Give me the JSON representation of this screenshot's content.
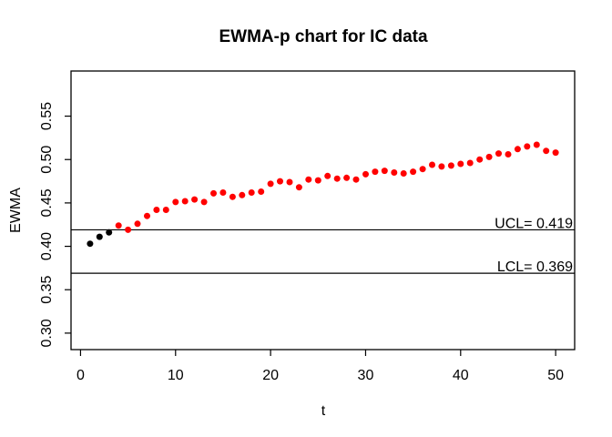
{
  "chart_data": {
    "type": "scatter",
    "title": "EWMA-p chart for IC data",
    "xlabel": "t",
    "ylabel": "EWMA",
    "xlim": [
      -1,
      52
    ],
    "ylim": [
      0.281,
      0.602
    ],
    "x_ticks": [
      0,
      10,
      20,
      30,
      40,
      50
    ],
    "y_ticks": [
      0.3,
      0.35,
      0.4,
      0.45,
      0.5,
      0.55
    ],
    "grid": false,
    "legend": "none",
    "control_limits": {
      "ucl": {
        "value": 0.419,
        "label": "UCL= 0.419"
      },
      "lcl": {
        "value": 0.369,
        "label": "LCL= 0.369"
      }
    },
    "series": [
      {
        "name": "initial-points-black",
        "color": "#000000",
        "x": [
          1,
          2,
          3
        ],
        "y": [
          0.403,
          0.411,
          0.416
        ]
      },
      {
        "name": "ewma-points-red",
        "color": "#FF0000",
        "x": [
          4,
          5,
          6,
          7,
          8,
          9,
          10,
          11,
          12,
          13,
          14,
          15,
          16,
          17,
          18,
          19,
          20,
          21,
          22,
          23,
          24,
          25,
          26,
          27,
          28,
          29,
          30,
          31,
          32,
          33,
          34,
          35,
          36,
          37,
          38,
          39,
          40,
          41,
          42,
          43,
          44,
          45,
          46,
          47,
          48,
          49,
          50
        ],
        "y": [
          0.424,
          0.419,
          0.426,
          0.435,
          0.442,
          0.442,
          0.451,
          0.452,
          0.454,
          0.451,
          0.461,
          0.462,
          0.457,
          0.459,
          0.462,
          0.463,
          0.472,
          0.475,
          0.474,
          0.468,
          0.477,
          0.476,
          0.481,
          0.478,
          0.479,
          0.477,
          0.483,
          0.486,
          0.487,
          0.485,
          0.484,
          0.486,
          0.489,
          0.494,
          0.492,
          0.493,
          0.495,
          0.496,
          0.5,
          0.503,
          0.507,
          0.506,
          0.512,
          0.515,
          0.517,
          0.51,
          0.508
        ]
      }
    ]
  },
  "colors": {
    "background": "#FFFFFF",
    "axis": "#000000",
    "point_black": "#000000",
    "point_red": "#FF0000"
  }
}
